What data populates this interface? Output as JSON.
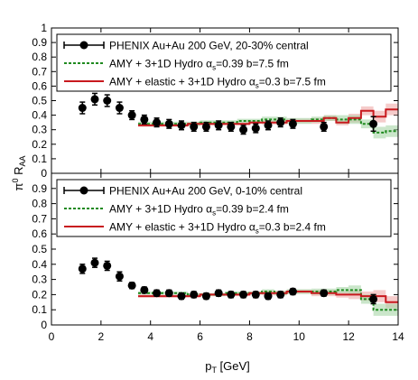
{
  "figure": {
    "xlabel_main": "p",
    "xlabel_sub": "T",
    "xlabel_rest": " [GeV]",
    "ylabel_pre": "π",
    "ylabel_sup": "0",
    "ylabel_main": " R",
    "ylabel_sub": "AA"
  },
  "chart_data": [
    {
      "type": "line",
      "panel": "top",
      "xlim": [
        0,
        14
      ],
      "ylim": [
        0,
        1
      ],
      "x_ticks": [
        "0",
        "2",
        "4",
        "6",
        "8",
        "10",
        "12",
        "14"
      ],
      "y_ticks": [
        "0",
        "0.1",
        "0.2",
        "0.3",
        "0.4",
        "0.5",
        "0.6",
        "0.7",
        "0.8",
        "0.9",
        "1"
      ],
      "legend": {
        "placement": "top",
        "entries": [
          {
            "label": "PHENIX Au+Au 200 GeV, 20-30% central",
            "style": "points",
            "color": "#000000"
          },
          {
            "label": "AMY + 3+1D Hydro α",
            "sub": "s",
            "tail": "=0.39 b=7.5 fm",
            "style": "dashed",
            "color": "#1f8a1f"
          },
          {
            "label": "AMY + elastic + 3+1D Hydro α",
            "sub": "s",
            "tail": "=0.3 b=7.5 fm",
            "style": "solid",
            "color": "#c8191e"
          }
        ]
      },
      "series": [
        {
          "name": "PHENIX Au+Au 200 GeV, 20-30% central",
          "x": [
            1.25,
            1.75,
            2.25,
            2.75,
            3.25,
            3.75,
            4.25,
            4.75,
            5.25,
            5.75,
            6.25,
            6.75,
            7.25,
            7.75,
            8.25,
            8.75,
            9.25,
            9.75,
            11.0,
            13.0
          ],
          "y": [
            0.45,
            0.51,
            0.5,
            0.45,
            0.4,
            0.37,
            0.35,
            0.34,
            0.33,
            0.32,
            0.32,
            0.33,
            0.32,
            0.3,
            0.31,
            0.33,
            0.35,
            0.34,
            0.32,
            0.34
          ],
          "err": [
            0.04,
            0.04,
            0.04,
            0.04,
            0.03,
            0.03,
            0.03,
            0.03,
            0.03,
            0.03,
            0.03,
            0.03,
            0.03,
            0.03,
            0.03,
            0.03,
            0.03,
            0.03,
            0.03,
            0.05
          ]
        },
        {
          "name": "AMY + 3+1D Hydro αs=0.39 b=7.5 fm",
          "x": [
            3.5,
            4,
            4.5,
            5,
            5.5,
            6,
            6.5,
            7,
            7.5,
            8,
            8.5,
            9,
            9.5,
            10,
            10.5,
            11,
            11.5,
            12,
            12.5,
            13,
            13.5,
            14
          ],
          "y": [
            0.34,
            0.34,
            0.34,
            0.34,
            0.34,
            0.35,
            0.35,
            0.35,
            0.36,
            0.36,
            0.37,
            0.37,
            0.36,
            0.36,
            0.37,
            0.38,
            0.37,
            0.37,
            0.34,
            0.28,
            0.29,
            0.3
          ],
          "band": [
            0.015,
            0.015,
            0.015,
            0.015,
            0.015,
            0.015,
            0.015,
            0.015,
            0.015,
            0.015,
            0.02,
            0.02,
            0.02,
            0.02,
            0.02,
            0.02,
            0.03,
            0.03,
            0.03,
            0.04,
            0.04,
            0.04
          ]
        },
        {
          "name": "AMY + elastic + 3+1D Hydro αs=0.3 b=7.5 fm",
          "x": [
            3.5,
            4,
            4.5,
            5,
            5.5,
            6,
            6.5,
            7,
            7.5,
            8,
            8.5,
            9,
            9.5,
            10,
            10.5,
            11,
            11.5,
            12,
            12.5,
            13,
            13.5,
            14
          ],
          "y": [
            0.33,
            0.33,
            0.33,
            0.33,
            0.34,
            0.34,
            0.34,
            0.34,
            0.34,
            0.35,
            0.35,
            0.35,
            0.36,
            0.36,
            0.36,
            0.38,
            0.35,
            0.38,
            0.43,
            0.39,
            0.44,
            0.44
          ],
          "band": [
            0.01,
            0.01,
            0.01,
            0.01,
            0.01,
            0.01,
            0.01,
            0.01,
            0.01,
            0.01,
            0.015,
            0.015,
            0.015,
            0.015,
            0.02,
            0.02,
            0.02,
            0.03,
            0.03,
            0.04,
            0.04,
            0.04
          ]
        }
      ]
    },
    {
      "type": "line",
      "panel": "bottom",
      "xlim": [
        0,
        14
      ],
      "ylim": [
        0,
        1
      ],
      "x_ticks": [
        "0",
        "2",
        "4",
        "6",
        "8",
        "10",
        "12",
        "14"
      ],
      "y_ticks": [
        "0",
        "0.1",
        "0.2",
        "0.3",
        "0.4",
        "0.5",
        "0.6",
        "0.7",
        "0.8",
        "0.9"
      ],
      "legend": {
        "placement": "top",
        "entries": [
          {
            "label": "PHENIX Au+Au 200 GeV, 0-10% central",
            "style": "points",
            "color": "#000000"
          },
          {
            "label": "AMY + 3+1D Hydro α",
            "sub": "s",
            "tail": "=0.39 b=2.4 fm",
            "style": "dashed",
            "color": "#1f8a1f"
          },
          {
            "label": "AMY + elastic + 3+1D Hydro α",
            "sub": "s",
            "tail": "=0.3 b=2.4 fm",
            "style": "solid",
            "color": "#c8191e"
          }
        ]
      },
      "series": [
        {
          "name": "PHENIX Au+Au 200 GeV, 0-10% central",
          "x": [
            1.25,
            1.75,
            2.25,
            2.75,
            3.25,
            3.75,
            4.25,
            4.75,
            5.25,
            5.75,
            6.25,
            6.75,
            7.25,
            7.75,
            8.25,
            8.75,
            9.25,
            9.75,
            11.0,
            13.0
          ],
          "y": [
            0.37,
            0.41,
            0.39,
            0.32,
            0.26,
            0.23,
            0.21,
            0.21,
            0.19,
            0.2,
            0.19,
            0.21,
            0.2,
            0.2,
            0.2,
            0.19,
            0.2,
            0.22,
            0.21,
            0.17
          ],
          "err": [
            0.03,
            0.03,
            0.03,
            0.03,
            0.02,
            0.02,
            0.02,
            0.02,
            0.02,
            0.02,
            0.02,
            0.02,
            0.02,
            0.02,
            0.02,
            0.02,
            0.02,
            0.02,
            0.02,
            0.03
          ]
        },
        {
          "name": "AMY + 3+1D Hydro αs=0.39 b=2.4 fm",
          "x": [
            3.5,
            4,
            4.5,
            5,
            5.5,
            6,
            6.5,
            7,
            7.5,
            8,
            8.5,
            9,
            9.5,
            10,
            10.5,
            11,
            11.5,
            12,
            12.5,
            13,
            13.5,
            14
          ],
          "y": [
            0.21,
            0.21,
            0.21,
            0.21,
            0.2,
            0.2,
            0.2,
            0.21,
            0.21,
            0.21,
            0.22,
            0.21,
            0.22,
            0.22,
            0.22,
            0.22,
            0.23,
            0.23,
            0.17,
            0.1,
            0.1,
            0.16
          ],
          "band": [
            0.01,
            0.01,
            0.01,
            0.01,
            0.01,
            0.01,
            0.01,
            0.01,
            0.01,
            0.01,
            0.015,
            0.015,
            0.015,
            0.015,
            0.02,
            0.02,
            0.02,
            0.03,
            0.03,
            0.04,
            0.04,
            0.04
          ]
        },
        {
          "name": "AMY + elastic + 3+1D Hydro αs=0.3 b=2.4 fm",
          "x": [
            3.5,
            4,
            4.5,
            5,
            5.5,
            6,
            6.5,
            7,
            7.5,
            8,
            8.5,
            9,
            9.5,
            10,
            10.5,
            11,
            11.5,
            12,
            12.5,
            13,
            13.5,
            14
          ],
          "y": [
            0.19,
            0.19,
            0.19,
            0.19,
            0.19,
            0.2,
            0.2,
            0.2,
            0.2,
            0.21,
            0.21,
            0.21,
            0.22,
            0.22,
            0.21,
            0.21,
            0.2,
            0.2,
            0.19,
            0.19,
            0.15,
            0.15
          ],
          "band": [
            0.01,
            0.01,
            0.01,
            0.01,
            0.01,
            0.01,
            0.01,
            0.01,
            0.01,
            0.01,
            0.015,
            0.015,
            0.015,
            0.015,
            0.02,
            0.02,
            0.02,
            0.03,
            0.03,
            0.04,
            0.04,
            0.04
          ]
        }
      ]
    }
  ]
}
